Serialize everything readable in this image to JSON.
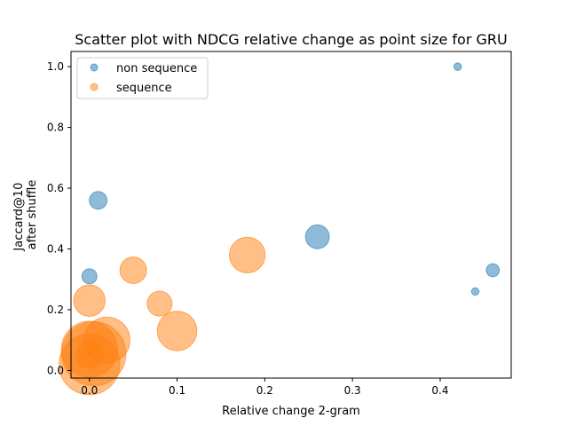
{
  "chart_data": {
    "type": "scatter",
    "title": "Scatter plot with NDCG relative change as point size for GRU",
    "xlabel": "Relative change 2-gram",
    "ylabel_lines": [
      "Jaccard@10",
      "after shuffle"
    ],
    "xlim": [
      -0.021,
      0.481
    ],
    "ylim": [
      -0.025,
      1.05
    ],
    "xticks": [
      0.0,
      0.1,
      0.2,
      0.3,
      0.4
    ],
    "xtick_labels": [
      "0.0",
      "0.1",
      "0.2",
      "0.3",
      "0.4"
    ],
    "yticks": [
      0.0,
      0.2,
      0.4,
      0.6,
      0.8,
      1.0
    ],
    "ytick_labels": [
      "0.0",
      "0.2",
      "0.4",
      "0.6",
      "0.8",
      "1.0"
    ],
    "grid": false,
    "legend_position": "top-left",
    "series": [
      {
        "name": "non sequence",
        "color": "#1f77b4",
        "points": [
          {
            "x": 0.42,
            "y": 1.0,
            "size": 0.02
          },
          {
            "x": 0.46,
            "y": 0.33,
            "size": 0.06
          },
          {
            "x": 0.44,
            "y": 0.26,
            "size": 0.02
          },
          {
            "x": 0.26,
            "y": 0.44,
            "size": 0.2
          },
          {
            "x": 0.01,
            "y": 0.56,
            "size": 0.11
          },
          {
            "x": 0.0,
            "y": 0.31,
            "size": 0.08
          }
        ]
      },
      {
        "name": "sequence",
        "color": "#ff7f0e",
        "points": [
          {
            "x": 0.18,
            "y": 0.38,
            "size": 0.45
          },
          {
            "x": 0.05,
            "y": 0.33,
            "size": 0.25
          },
          {
            "x": 0.0,
            "y": 0.23,
            "size": 0.35
          },
          {
            "x": 0.08,
            "y": 0.22,
            "size": 0.22
          },
          {
            "x": 0.1,
            "y": 0.13,
            "size": 0.55
          },
          {
            "x": 0.02,
            "y": 0.1,
            "size": 0.75
          },
          {
            "x": 0.0,
            "y": 0.05,
            "size": 0.25
          },
          {
            "x": 0.005,
            "y": 0.055,
            "size": 1.45
          },
          {
            "x": 0.0,
            "y": 0.07,
            "size": 1.1
          },
          {
            "x": 0.0,
            "y": 0.02,
            "size": 1.3
          }
        ]
      }
    ]
  }
}
